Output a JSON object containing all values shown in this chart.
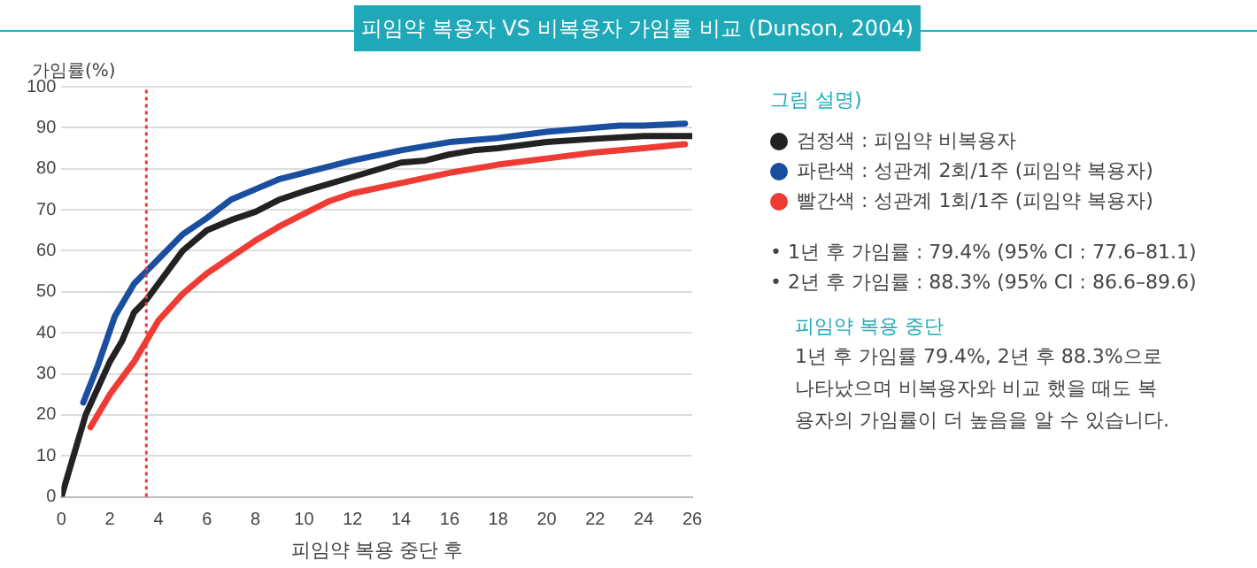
{
  "chart_data": {
    "type": "line",
    "title": "피임약 복용자 VS 비복용자 가임률 비교 (Dunson, 2004)",
    "xlabel": "피임약 복용 중단 후",
    "ylabel": "가임률(%)",
    "legend_title": "그림 설명)",
    "xlim": [
      0,
      26
    ],
    "xticks": [
      0,
      2,
      4,
      6,
      8,
      10,
      12,
      14,
      16,
      18,
      20,
      22,
      24,
      26
    ],
    "ylim": [
      0,
      100
    ],
    "yticks": [
      0,
      10,
      20,
      30,
      40,
      50,
      60,
      70,
      80,
      90,
      100
    ],
    "grid": "y",
    "legend": "right",
    "marker": "none",
    "line_style": "solid",
    "series": [
      {
        "name": "검정색 : 피임약 비복용자",
        "color": "#222222",
        "x": [
          0,
          0.5,
          1,
          2,
          2.5,
          3,
          3.5,
          4,
          5,
          6,
          7,
          8,
          9,
          10,
          12,
          14,
          15,
          16,
          17,
          18,
          20,
          22,
          24,
          26
        ],
        "values": [
          0,
          10,
          20,
          33,
          38,
          45,
          48,
          52,
          60,
          65,
          67.5,
          69.5,
          72.5,
          74.5,
          78,
          81.5,
          82,
          83.5,
          84.5,
          85,
          86.5,
          87.3,
          88,
          88
        ]
      },
      {
        "name": "파란색 : 성관계 2회/1주 (피임약 복용자)",
        "color": "#1a4fa0",
        "x": [
          0.9,
          1.5,
          2.2,
          3,
          3.5,
          4,
          5,
          6,
          7,
          8,
          9,
          10,
          12,
          14,
          16,
          18,
          20,
          22,
          23,
          24,
          25.7
        ],
        "values": [
          23,
          32,
          44,
          52,
          55,
          58,
          64,
          68,
          72.5,
          75,
          77.5,
          79,
          82,
          84.5,
          86.5,
          87.5,
          89,
          90,
          90.5,
          90.5,
          91
        ]
      },
      {
        "name": "빨간색 : 성관계 1회/1주 (피임약 복용자)",
        "color": "#ee3b33",
        "x": [
          1.2,
          2,
          3,
          3.5,
          4,
          5,
          6,
          7,
          8,
          9,
          10,
          11,
          12,
          14,
          16,
          18,
          20,
          22,
          24,
          25.7
        ],
        "values": [
          17,
          25,
          33,
          38,
          43,
          49.5,
          54.5,
          58.5,
          62.5,
          66,
          69,
          72,
          74,
          76.5,
          79,
          81,
          82.5,
          84,
          85,
          86
        ]
      }
    ],
    "ref_lines": [
      {
        "axis": "x",
        "value": 3.5,
        "color": "#ee3b33",
        "line_style": "dotted"
      }
    ],
    "annotations": [
      "• 1년 후 가임률 : 79.4% (95% CI : 77.6–81.1)",
      "• 2년 후 가임률 : 88.3% (95% CI : 86.6–89.6)",
      "피임약 복용 중단",
      "1년 후 가임률 79.4%, 2년 후 88.3%으로 나타났으며 비복용자와 비교 했을 때도 복용자의 가임률이 더 높음을 알 수 있습니다."
    ]
  }
}
